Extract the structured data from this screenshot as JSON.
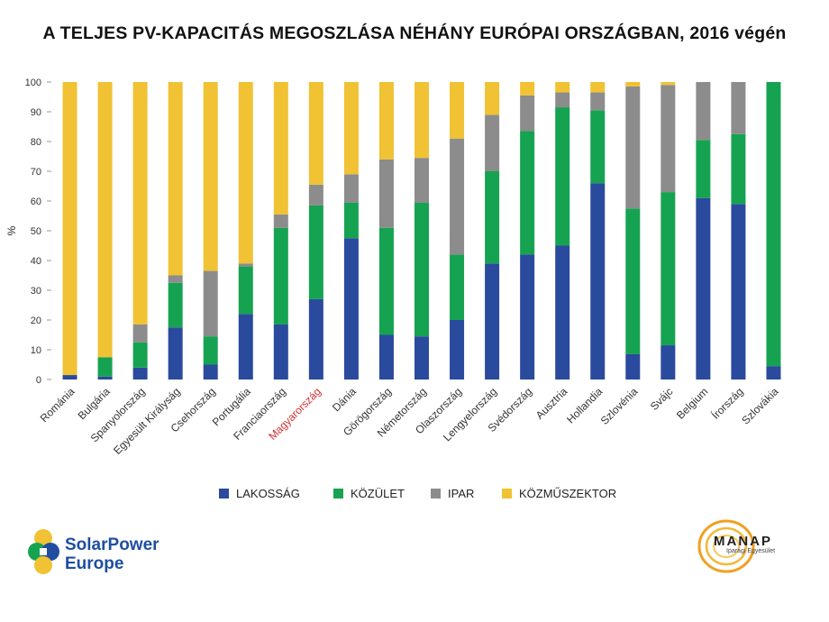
{
  "title": "A TELJES PV-KAPACITÁS MEGOSZLÁSA NÉHÁNY EURÓPAI ORSZÁGBAN, 2016 végén",
  "colors": {
    "LAKOSSÁG": "#2a4a9e",
    "KÖZÜLET": "#16a351",
    "IPAR": "#8c8c8c",
    "KÖZMŰSZEKTOR": "#f0c234",
    "highlight_label": "#d03030"
  },
  "highlighted_category": "Magyarország",
  "legend": [
    "LAKOSSÁG",
    "KÖZÜLET",
    "IPAR",
    "KÖZMŰSZEKTOR"
  ],
  "logos": {
    "solarpower_line1": "SolarPower",
    "solarpower_line2": "Europe",
    "manap_name": "MANAP",
    "manap_sub": "Iparági Egyesület"
  },
  "chart_data": {
    "type": "bar",
    "stacked": true,
    "categories": [
      "Románia",
      "Bulgária",
      "Spanyolország",
      "Egyesült Királyság",
      "Csehország",
      "Portugália",
      "Franciaország",
      "Magyarország",
      "Dánia",
      "Görögország",
      "Németország",
      "Olaszország",
      "Lengyelország",
      "Svédország",
      "Ausztria",
      "Hollandia",
      "Szlovénia",
      "Svájc",
      "Belgium",
      "Írország",
      "Szlovákia"
    ],
    "series": [
      {
        "name": "LAKOSSÁG",
        "values": [
          1.5,
          1,
          4,
          17.5,
          5,
          22,
          18.5,
          27,
          47.5,
          15,
          14.5,
          20,
          39,
          42,
          45,
          66,
          8.5,
          11.5,
          61,
          59,
          4.5
        ]
      },
      {
        "name": "KÖZÜLET",
        "values": [
          0,
          6.5,
          8.5,
          15,
          9.5,
          16,
          32.5,
          31.5,
          12,
          36,
          45,
          22,
          31,
          41.5,
          46.5,
          24.5,
          49,
          51.5,
          19.5,
          23.5,
          95.5
        ]
      },
      {
        "name": "IPAR",
        "values": [
          0,
          0,
          6,
          2.5,
          22,
          1,
          4.5,
          7,
          9.5,
          23,
          15,
          39,
          19,
          12,
          5,
          6,
          41,
          36,
          19.5,
          17.5,
          0
        ]
      },
      {
        "name": "KÖZMŰSZEKTOR",
        "values": [
          98.5,
          92.5,
          81.5,
          65,
          63.5,
          61,
          44.5,
          34.5,
          31,
          26,
          25.5,
          19,
          11,
          4.5,
          3.5,
          3.5,
          1.5,
          1,
          0,
          0,
          0
        ]
      }
    ],
    "ylabel": "%",
    "ylim": [
      0,
      100
    ],
    "yticks": [
      0,
      10,
      20,
      30,
      40,
      50,
      60,
      70,
      80,
      90,
      100
    ],
    "legend_position": "bottom",
    "grid": false
  }
}
